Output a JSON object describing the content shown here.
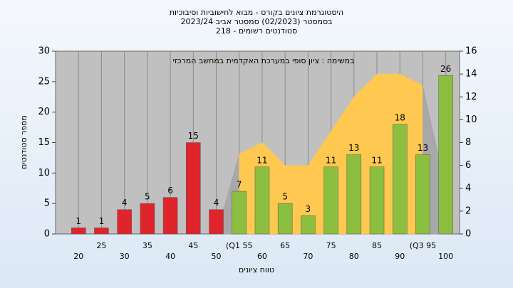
{
  "chart_data": {
    "type": "bar",
    "title": [
      "היסטוגרמת ציונים בקורס - מבוא לחישוביות וסיבוכיות",
      "בסמסטר  (02/2023)  סמסטר אביב 2023/24",
      "סטודנטים רשומים - 218"
    ],
    "annotation": "במשימה : ציון סופי במערכת האקדמית במחשב המרכזי",
    "x_label": "טווח ציונים",
    "y_label": "מספר סטודנטים",
    "x": [
      20,
      25,
      30,
      35,
      40,
      45,
      50,
      55,
      60,
      65,
      70,
      75,
      80,
      85,
      90,
      95,
      100
    ],
    "values": [
      1,
      1,
      4,
      5,
      6,
      15,
      4,
      7,
      11,
      5,
      3,
      11,
      13,
      11,
      18,
      13,
      26
    ],
    "colors": [
      "#e0242c",
      "#e0242c",
      "#e0242c",
      "#e0242c",
      "#e0242c",
      "#e0242c",
      "#e0242c",
      "#8cbf3f",
      "#8cbf3f",
      "#8cbf3f",
      "#8cbf3f",
      "#8cbf3f",
      "#8cbf3f",
      "#8cbf3f",
      "#8cbf3f",
      "#8cbf3f",
      "#8cbf3f"
    ],
    "area": {
      "x": [
        50,
        55,
        60,
        65,
        70,
        75,
        80,
        85,
        90,
        95,
        100
      ],
      "values": [
        0,
        7,
        8,
        6,
        6,
        9,
        12,
        14,
        14,
        13,
        4
      ],
      "axis": "y2",
      "color": "#ffc850",
      "outside_color": "#a8a8a8",
      "highlight_range": [
        55,
        95
      ]
    },
    "xlim": [
      15,
      103
    ],
    "xticks": [
      20,
      25,
      30,
      35,
      40,
      45,
      50,
      {
        "value": 55,
        "label": "(Q1 55"
      },
      60,
      65,
      70,
      75,
      80,
      85,
      90,
      {
        "value": 95,
        "label": "(Q3 95"
      },
      100
    ],
    "ylim": [
      0,
      30
    ],
    "yticks": [
      0,
      5,
      10,
      15,
      20,
      25,
      30
    ],
    "y2lim": [
      0,
      16
    ],
    "y2ticks": [
      0,
      2,
      4,
      6,
      8,
      10,
      12,
      14,
      16
    ],
    "grid": true
  }
}
